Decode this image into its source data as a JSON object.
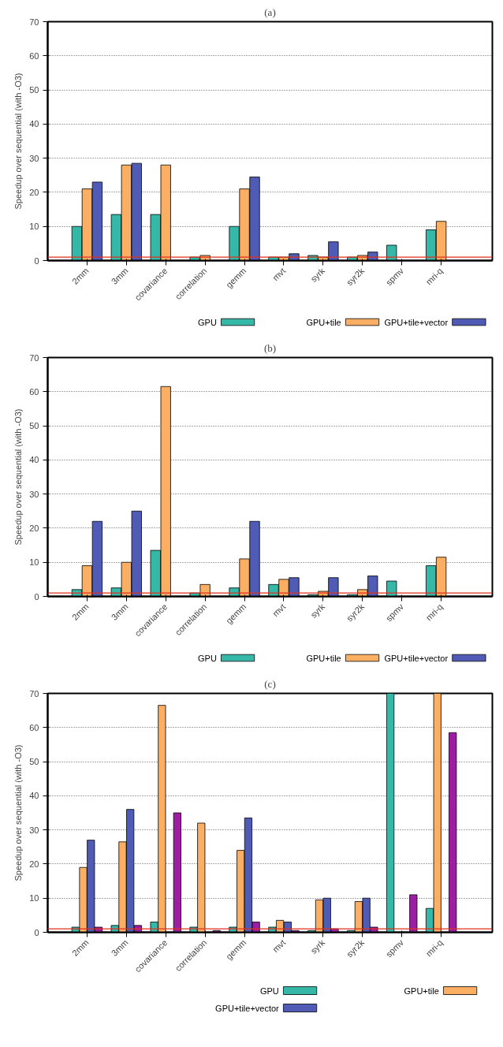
{
  "chart_data": [
    {
      "type": "bar",
      "title": "(a)",
      "ylabel": "Speedup over sequential (with -O3)",
      "categories": [
        "2mm",
        "3mm",
        "covariance",
        "correlation",
        "gemm",
        "mvt",
        "syrk",
        "syr2k",
        "spmv",
        "mri-q"
      ],
      "series": [
        {
          "name": "GPU",
          "color": "#35b8a8",
          "values": [
            10,
            13.5,
            13.5,
            1,
            10,
            1,
            1.5,
            1,
            4.5,
            9
          ]
        },
        {
          "name": "GPU+tile",
          "color": "#fcae62",
          "values": [
            21,
            28,
            28,
            1.5,
            21,
            1,
            1,
            1.5,
            null,
            11.5
          ]
        },
        {
          "name": "GPU+tile+vector",
          "color": "#4f5bb5",
          "values": [
            23,
            28.5,
            null,
            null,
            24.5,
            2,
            5.5,
            2.5,
            null,
            null
          ]
        }
      ],
      "ylim": [
        0,
        70
      ],
      "yticks": [
        0,
        10,
        20,
        30,
        40,
        50,
        60,
        70
      ],
      "grid": "y",
      "legend": "bottom",
      "ref_lines": [
        {
          "axis": "y",
          "value": 1,
          "color": "#e0301e"
        }
      ]
    },
    {
      "type": "bar",
      "title": "(b)",
      "ylabel": "Speedup over sequential (with -O3)",
      "categories": [
        "2mm",
        "3mm",
        "covariance",
        "correlation",
        "gemm",
        "mvt",
        "syrk",
        "syr2k",
        "spmv",
        "mri-q"
      ],
      "series": [
        {
          "name": "GPU",
          "color": "#35b8a8",
          "values": [
            2,
            2.5,
            13.5,
            1,
            2.5,
            3.5,
            0.5,
            0.5,
            4.5,
            9
          ]
        },
        {
          "name": "GPU+tile",
          "color": "#fcae62",
          "values": [
            9,
            10,
            61.5,
            3.5,
            11,
            5,
            1.5,
            2,
            null,
            11.5
          ]
        },
        {
          "name": "GPU+tile+vector",
          "color": "#4f5bb5",
          "values": [
            22,
            25,
            null,
            null,
            22,
            5.5,
            5.5,
            6,
            null,
            null
          ]
        }
      ],
      "ylim": [
        0,
        70
      ],
      "yticks": [
        0,
        10,
        20,
        30,
        40,
        50,
        60,
        70
      ],
      "grid": "y",
      "legend": "bottom",
      "ref_lines": [
        {
          "axis": "y",
          "value": 1,
          "color": "#e0301e"
        }
      ]
    },
    {
      "type": "bar",
      "title": "(c)",
      "ylabel": "Speedup over sequential (with -O3)",
      "categories": [
        "2mm",
        "3mm",
        "covariance",
        "correlation",
        "gemm",
        "mvt",
        "syrk",
        "syr2k",
        "spmv",
        "mri-q"
      ],
      "series": [
        {
          "name": "GPU",
          "color": "#35b8a8",
          "values": [
            1.5,
            2,
            3,
            1.5,
            1.5,
            1.5,
            0.5,
            0.5,
            70,
            7
          ]
        },
        {
          "name": "GPU+tile",
          "color": "#fcae62",
          "values": [
            19,
            26.5,
            66.5,
            32,
            24,
            3.5,
            9.5,
            9,
            null,
            70
          ]
        },
        {
          "name": "GPU+tile+vector",
          "color": "#4f5bb5",
          "values": [
            27,
            36,
            null,
            null,
            33.5,
            3,
            10,
            10,
            null,
            null
          ]
        },
        {
          "color": "#9c1fa3",
          "values": [
            1.5,
            2,
            35,
            0.5,
            3,
            0.5,
            1,
            1.5,
            11,
            58.5
          ]
        }
      ],
      "ylim": [
        0,
        70
      ],
      "yticks": [
        0,
        10,
        20,
        30,
        40,
        50,
        60,
        70
      ],
      "grid": "y",
      "legend": "bottom",
      "ref_lines": [
        {
          "axis": "y",
          "value": 1,
          "color": "#e0301e"
        }
      ]
    }
  ]
}
